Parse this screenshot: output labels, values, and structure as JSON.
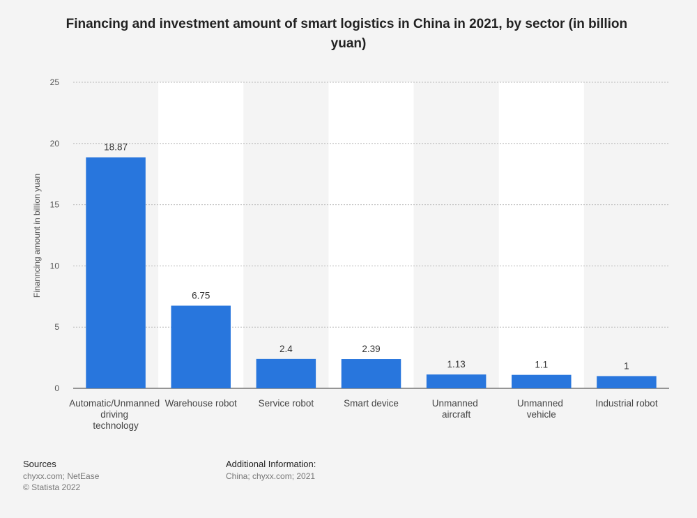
{
  "chart_data": {
    "type": "bar",
    "title": "Financing and investment amount of smart logistics in China in 2021, by sector (in billion yuan)",
    "y_label": "Finanncing amount in billion yuan",
    "categories": [
      "Automatic/Unmanned driving technology",
      "Warehouse robot",
      "Service robot",
      "Smart device",
      "Unmanned aircraft",
      "Unmanned vehicle",
      "Industrial robot"
    ],
    "values": [
      18.87,
      6.75,
      2.4,
      2.39,
      1.13,
      1.1,
      1
    ],
    "color": "#2876dd",
    "ylim": [
      0,
      25
    ],
    "yticks": [
      0,
      5,
      10,
      15,
      20,
      25
    ],
    "grid": true
  },
  "footer": {
    "sources_title": "Sources",
    "sources": "chyxx.com; NetEase",
    "copyright": "© Statista 2022",
    "info_title": "Additional Information:",
    "info": "China; chyxx.com; 2021"
  }
}
